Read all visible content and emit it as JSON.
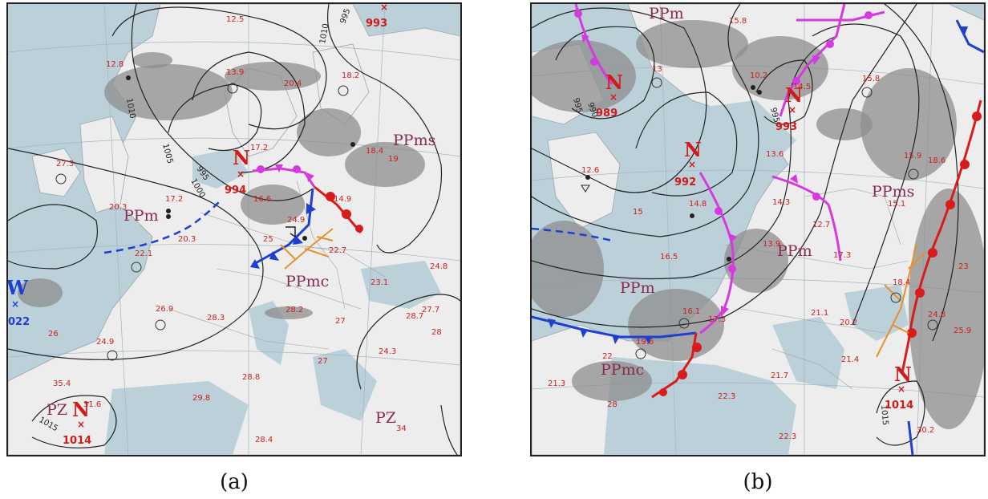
{
  "panel_a": {
    "caption": "(a)",
    "lows": [
      {
        "letter": "N",
        "pressure": "994"
      },
      {
        "letter": "N",
        "pressure": "993"
      },
      {
        "letter": "N",
        "pressure": "1014"
      }
    ],
    "highs": [
      {
        "letter": "W",
        "pressure": "022"
      }
    ],
    "air_masses": [
      "PPms",
      "PPm",
      "PPmc",
      "PZ",
      "PZ"
    ],
    "isobars": [
      "1010",
      "1005",
      "1000",
      "995",
      "1015",
      "1010",
      "995"
    ],
    "temperatures": [
      "12.5",
      "12.8",
      "13.9",
      "20.4",
      "18.2",
      "17.2",
      "18.4",
      "19",
      "27.3",
      "20.3",
      "17.2",
      "16.6",
      "24.9",
      "25",
      "20.3",
      "22.1",
      "22.7",
      "24.8",
      "23.1",
      "26.9",
      "28.3",
      "28.2",
      "27.7",
      "28.7",
      "28",
      "27",
      "27",
      "24.3",
      "28.8",
      "29.8",
      "28.4",
      "24.9",
      "26",
      "35.4",
      "31.6",
      "34",
      "14.9"
    ]
  },
  "panel_b": {
    "caption": "(b)",
    "lows": [
      {
        "letter": "N",
        "pressure": "989"
      },
      {
        "letter": "N",
        "pressure": "993"
      },
      {
        "letter": "N",
        "pressure": "992"
      },
      {
        "letter": "N",
        "pressure": "1014"
      }
    ],
    "air_masses": [
      "PPm",
      "PPms",
      "PPm",
      "PPm",
      "PPmc"
    ],
    "isobars": [
      "995",
      "990",
      "995",
      "1015"
    ],
    "temperatures": [
      "15.8",
      "13",
      "10.2",
      "14.5",
      "15.8",
      "12.6",
      "13.6",
      "15.9",
      "18.6",
      "15",
      "14.8",
      "14.3",
      "15.1",
      "12.7",
      "13.9",
      "17.3",
      "16.5",
      "16.1",
      "17.3",
      "19.6",
      "22",
      "21.1",
      "18.4",
      "23",
      "20.2",
      "24.8",
      "25.9",
      "21.4",
      "21.7",
      "21.3",
      "28",
      "22.3",
      "22.3",
      "30.2"
    ]
  },
  "colors": {
    "cold_front": "#1f3fd1",
    "warm_front": "#d81b1b",
    "occluded_front": "#d53ae0",
    "convergence_line": "#e8912a",
    "sea": "#bcd0da",
    "land": "#ededed",
    "clouds": "#8e8e8e"
  }
}
